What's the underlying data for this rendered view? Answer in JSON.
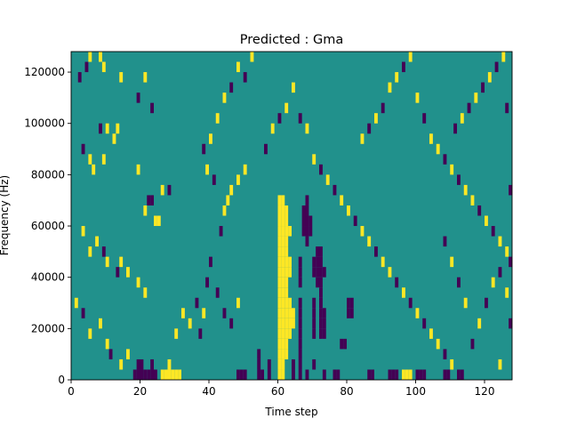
{
  "chart_data": {
    "type": "heatmap",
    "title": "Predicted : Gma",
    "xlabel": "Time step",
    "ylabel": "Frequency (Hz)",
    "xlim": [
      0,
      128
    ],
    "ylim": [
      0,
      128000
    ],
    "xticks": [
      {
        "value": 0,
        "label": "0"
      },
      {
        "value": 20,
        "label": "20"
      },
      {
        "value": 40,
        "label": "40"
      },
      {
        "value": 60,
        "label": "60"
      },
      {
        "value": 80,
        "label": "80"
      },
      {
        "value": 100,
        "label": "100"
      },
      {
        "value": 120,
        "label": "120"
      }
    ],
    "yticks": [
      {
        "value": 0,
        "label": "0"
      },
      {
        "value": 20000,
        "label": "20000"
      },
      {
        "value": 40000,
        "label": "40000"
      },
      {
        "value": 60000,
        "label": "60000"
      },
      {
        "value": 80000,
        "label": "80000"
      },
      {
        "value": 100000,
        "label": "100000"
      },
      {
        "value": 120000,
        "label": "120000"
      }
    ],
    "grid": false,
    "legend": "none",
    "colors": {
      "background": "#21918c",
      "low": "#440154",
      "high": "#fde725"
    },
    "levels": {
      "background": 0,
      "low": -1,
      "high": 1
    },
    "cell_height_hz": 4000,
    "cells": [
      [
        60,
        0,
        1
      ],
      [
        60,
        4000,
        1
      ],
      [
        60,
        8000,
        1
      ],
      [
        60,
        12000,
        1
      ],
      [
        60,
        16000,
        1
      ],
      [
        60,
        20000,
        1
      ],
      [
        60,
        24000,
        1
      ],
      [
        60,
        28000,
        1
      ],
      [
        60,
        32000,
        1
      ],
      [
        60,
        36000,
        1
      ],
      [
        60,
        40000,
        1
      ],
      [
        60,
        44000,
        1
      ],
      [
        60,
        48000,
        1
      ],
      [
        60,
        52000,
        1
      ],
      [
        60,
        56000,
        1
      ],
      [
        60,
        60000,
        1
      ],
      [
        60,
        64000,
        1
      ],
      [
        60,
        68000,
        1
      ],
      [
        61,
        0,
        1
      ],
      [
        61,
        4000,
        1
      ],
      [
        61,
        8000,
        1
      ],
      [
        61,
        12000,
        1
      ],
      [
        61,
        16000,
        1
      ],
      [
        61,
        20000,
        1
      ],
      [
        61,
        24000,
        1
      ],
      [
        61,
        28000,
        1
      ],
      [
        61,
        32000,
        1
      ],
      [
        61,
        36000,
        1
      ],
      [
        61,
        40000,
        1
      ],
      [
        61,
        44000,
        1
      ],
      [
        61,
        48000,
        1
      ],
      [
        61,
        52000,
        1
      ],
      [
        61,
        56000,
        1
      ],
      [
        61,
        60000,
        1
      ],
      [
        61,
        64000,
        1
      ],
      [
        61,
        68000,
        1
      ],
      [
        62,
        8000,
        1
      ],
      [
        62,
        12000,
        1
      ],
      [
        62,
        16000,
        1
      ],
      [
        62,
        20000,
        1
      ],
      [
        62,
        24000,
        1
      ],
      [
        62,
        28000,
        1
      ],
      [
        62,
        32000,
        1
      ],
      [
        62,
        36000,
        1
      ],
      [
        62,
        40000,
        1
      ],
      [
        62,
        44000,
        1
      ],
      [
        62,
        48000,
        1
      ],
      [
        62,
        52000,
        1
      ],
      [
        62,
        56000,
        1
      ],
      [
        62,
        60000,
        1
      ],
      [
        62,
        64000,
        1
      ],
      [
        63,
        16000,
        1
      ],
      [
        63,
        20000,
        1
      ],
      [
        63,
        24000,
        1
      ],
      [
        63,
        28000,
        1
      ],
      [
        63,
        40000,
        1
      ],
      [
        63,
        44000,
        1
      ],
      [
        63,
        56000,
        1
      ],
      [
        64,
        20000,
        1
      ],
      [
        64,
        24000,
        1
      ],
      [
        18,
        0,
        -1
      ],
      [
        19,
        0,
        -1
      ],
      [
        20,
        0,
        -1
      ],
      [
        21,
        0,
        -1
      ],
      [
        22,
        0,
        -1
      ],
      [
        23,
        0,
        -1
      ],
      [
        24,
        0,
        -1
      ],
      [
        20,
        4000,
        -1
      ],
      [
        23,
        4000,
        -1
      ],
      [
        26,
        0,
        1
      ],
      [
        27,
        0,
        1
      ],
      [
        28,
        0,
        1
      ],
      [
        29,
        0,
        1
      ],
      [
        30,
        0,
        1
      ],
      [
        31,
        0,
        1
      ],
      [
        28,
        4000,
        1
      ],
      [
        48,
        0,
        -1
      ],
      [
        49,
        0,
        -1
      ],
      [
        50,
        0,
        -1
      ],
      [
        54,
        0,
        -1
      ],
      [
        55,
        0,
        -1
      ],
      [
        54,
        4000,
        -1
      ],
      [
        54,
        8000,
        -1
      ],
      [
        57,
        0,
        -1
      ],
      [
        57,
        4000,
        -1
      ],
      [
        64,
        0,
        -1
      ],
      [
        64,
        4000,
        -1
      ],
      [
        66,
        0,
        -1
      ],
      [
        66,
        4000,
        -1
      ],
      [
        66,
        8000,
        -1
      ],
      [
        66,
        12000,
        -1
      ],
      [
        66,
        16000,
        -1
      ],
      [
        66,
        20000,
        -1
      ],
      [
        66,
        24000,
        -1
      ],
      [
        66,
        28000,
        -1
      ],
      [
        66,
        36000,
        -1
      ],
      [
        66,
        40000,
        -1
      ],
      [
        66,
        44000,
        -1
      ],
      [
        67,
        56000,
        -1
      ],
      [
        67,
        60000,
        -1
      ],
      [
        67,
        64000,
        -1
      ],
      [
        68,
        52000,
        -1
      ],
      [
        68,
        56000,
        -1
      ],
      [
        68,
        60000,
        -1
      ],
      [
        68,
        64000,
        -1
      ],
      [
        68,
        68000,
        -1
      ],
      [
        69,
        56000,
        -1
      ],
      [
        69,
        60000,
        -1
      ],
      [
        70,
        16000,
        -1
      ],
      [
        70,
        20000,
        -1
      ],
      [
        70,
        24000,
        -1
      ],
      [
        70,
        28000,
        -1
      ],
      [
        70,
        40000,
        -1
      ],
      [
        70,
        44000,
        -1
      ],
      [
        71,
        36000,
        -1
      ],
      [
        71,
        40000,
        -1
      ],
      [
        71,
        44000,
        -1
      ],
      [
        71,
        48000,
        -1
      ],
      [
        72,
        16000,
        -1
      ],
      [
        72,
        20000,
        -1
      ],
      [
        72,
        24000,
        -1
      ],
      [
        72,
        28000,
        -1
      ],
      [
        72,
        32000,
        -1
      ],
      [
        72,
        36000,
        -1
      ],
      [
        72,
        40000,
        -1
      ],
      [
        72,
        44000,
        -1
      ],
      [
        72,
        48000,
        -1
      ],
      [
        73,
        16000,
        -1
      ],
      [
        73,
        20000,
        -1
      ],
      [
        73,
        24000,
        -1
      ],
      [
        73,
        40000,
        -1
      ],
      [
        68,
        0,
        -1
      ],
      [
        70,
        4000,
        -1
      ],
      [
        73,
        0,
        -1
      ],
      [
        76,
        0,
        -1
      ],
      [
        77,
        0,
        -1
      ],
      [
        80,
        24000,
        -1
      ],
      [
        80,
        28000,
        -1
      ],
      [
        81,
        24000,
        -1
      ],
      [
        81,
        28000,
        -1
      ],
      [
        78,
        12000,
        -1
      ],
      [
        79,
        12000,
        -1
      ],
      [
        86,
        0,
        -1
      ],
      [
        87,
        0,
        -1
      ],
      [
        92,
        0,
        -1
      ],
      [
        93,
        0,
        -1
      ],
      [
        94,
        0,
        -1
      ],
      [
        96,
        0,
        1
      ],
      [
        97,
        0,
        1
      ],
      [
        98,
        0,
        1
      ],
      [
        100,
        0,
        -1
      ],
      [
        101,
        0,
        -1
      ],
      [
        102,
        0,
        -1
      ],
      [
        108,
        0,
        -1
      ],
      [
        109,
        0,
        -1
      ],
      [
        112,
        0,
        -1
      ],
      [
        113,
        0,
        -1
      ],
      [
        124,
        4000,
        1
      ],
      [
        127,
        20000,
        -1
      ],
      [
        5,
        124000,
        1
      ],
      [
        4,
        120000,
        -1
      ],
      [
        2,
        116000,
        -1
      ],
      [
        8,
        124000,
        1
      ],
      [
        9,
        120000,
        1
      ],
      [
        14,
        116000,
        1
      ],
      [
        21,
        116000,
        1
      ],
      [
        23,
        104000,
        -1
      ],
      [
        19,
        108000,
        -1
      ],
      [
        8,
        96000,
        -1
      ],
      [
        10,
        96000,
        1
      ],
      [
        12,
        92000,
        1
      ],
      [
        13,
        96000,
        1
      ],
      [
        3,
        88000,
        -1
      ],
      [
        5,
        84000,
        1
      ],
      [
        6,
        80000,
        1
      ],
      [
        9,
        84000,
        1
      ],
      [
        22,
        68000,
        -1
      ],
      [
        23,
        68000,
        -1
      ],
      [
        26,
        72000,
        1
      ],
      [
        28,
        72000,
        -1
      ],
      [
        19,
        80000,
        1
      ],
      [
        21,
        64000,
        1
      ],
      [
        24,
        60000,
        1
      ],
      [
        25,
        60000,
        1
      ],
      [
        3,
        56000,
        1
      ],
      [
        5,
        48000,
        1
      ],
      [
        7,
        52000,
        1
      ],
      [
        9,
        48000,
        -1
      ],
      [
        10,
        44000,
        1
      ],
      [
        13,
        40000,
        -1
      ],
      [
        14,
        44000,
        1
      ],
      [
        16,
        40000,
        1
      ],
      [
        19,
        36000,
        1
      ],
      [
        21,
        32000,
        1
      ],
      [
        1,
        28000,
        1
      ],
      [
        3,
        24000,
        -1
      ],
      [
        5,
        16000,
        1
      ],
      [
        8,
        20000,
        1
      ],
      [
        10,
        12000,
        1
      ],
      [
        11,
        8000,
        -1
      ],
      [
        14,
        4000,
        1
      ],
      [
        16,
        8000,
        1
      ],
      [
        19,
        4000,
        -1
      ],
      [
        30,
        16000,
        1
      ],
      [
        32,
        24000,
        1
      ],
      [
        34,
        20000,
        1
      ],
      [
        36,
        28000,
        -1
      ],
      [
        37,
        16000,
        -1
      ],
      [
        38,
        24000,
        1
      ],
      [
        39,
        36000,
        -1
      ],
      [
        40,
        44000,
        -1
      ],
      [
        42,
        32000,
        -1
      ],
      [
        44,
        24000,
        -1
      ],
      [
        46,
        20000,
        -1
      ],
      [
        48,
        28000,
        1
      ],
      [
        43,
        56000,
        -1
      ],
      [
        44,
        64000,
        1
      ],
      [
        45,
        68000,
        1
      ],
      [
        46,
        72000,
        1
      ],
      [
        48,
        76000,
        1
      ],
      [
        50,
        80000,
        1
      ],
      [
        41,
        76000,
        -1
      ],
      [
        39,
        80000,
        1
      ],
      [
        38,
        88000,
        -1
      ],
      [
        40,
        92000,
        1
      ],
      [
        42,
        100000,
        1
      ],
      [
        44,
        108000,
        1
      ],
      [
        46,
        112000,
        -1
      ],
      [
        48,
        120000,
        1
      ],
      [
        50,
        116000,
        -1
      ],
      [
        52,
        124000,
        1
      ],
      [
        56,
        88000,
        -1
      ],
      [
        58,
        96000,
        1
      ],
      [
        60,
        100000,
        -1
      ],
      [
        62,
        104000,
        1
      ],
      [
        64,
        112000,
        1
      ],
      [
        66,
        100000,
        -1
      ],
      [
        68,
        96000,
        1
      ],
      [
        70,
        84000,
        1
      ],
      [
        72,
        80000,
        -1
      ],
      [
        74,
        76000,
        1
      ],
      [
        76,
        72000,
        -1
      ],
      [
        78,
        68000,
        1
      ],
      [
        80,
        64000,
        1
      ],
      [
        82,
        60000,
        -1
      ],
      [
        84,
        56000,
        1
      ],
      [
        86,
        52000,
        1
      ],
      [
        88,
        48000,
        -1
      ],
      [
        90,
        44000,
        1
      ],
      [
        92,
        40000,
        1
      ],
      [
        94,
        36000,
        -1
      ],
      [
        96,
        32000,
        1
      ],
      [
        98,
        28000,
        -1
      ],
      [
        100,
        24000,
        1
      ],
      [
        102,
        20000,
        -1
      ],
      [
        104,
        16000,
        1
      ],
      [
        106,
        12000,
        1
      ],
      [
        108,
        8000,
        -1
      ],
      [
        110,
        4000,
        1
      ],
      [
        84,
        92000,
        1
      ],
      [
        86,
        96000,
        -1
      ],
      [
        88,
        100000,
        1
      ],
      [
        90,
        104000,
        -1
      ],
      [
        92,
        112000,
        1
      ],
      [
        94,
        116000,
        1
      ],
      [
        96,
        120000,
        -1
      ],
      [
        98,
        124000,
        1
      ],
      [
        100,
        108000,
        1
      ],
      [
        102,
        100000,
        -1
      ],
      [
        104,
        92000,
        1
      ],
      [
        106,
        88000,
        1
      ],
      [
        108,
        84000,
        -1
      ],
      [
        110,
        80000,
        1
      ],
      [
        112,
        76000,
        -1
      ],
      [
        114,
        72000,
        1
      ],
      [
        116,
        68000,
        1
      ],
      [
        118,
        64000,
        -1
      ],
      [
        120,
        60000,
        1
      ],
      [
        122,
        56000,
        -1
      ],
      [
        124,
        52000,
        1
      ],
      [
        126,
        48000,
        1
      ],
      [
        127,
        44000,
        -1
      ],
      [
        111,
        96000,
        -1
      ],
      [
        113,
        100000,
        1
      ],
      [
        115,
        104000,
        -1
      ],
      [
        117,
        108000,
        1
      ],
      [
        119,
        112000,
        -1
      ],
      [
        121,
        116000,
        1
      ],
      [
        123,
        120000,
        -1
      ],
      [
        125,
        124000,
        1
      ],
      [
        126,
        104000,
        -1
      ],
      [
        127,
        72000,
        -1
      ],
      [
        116,
        12000,
        -1
      ],
      [
        118,
        20000,
        1
      ],
      [
        120,
        28000,
        -1
      ],
      [
        122,
        36000,
        1
      ],
      [
        124,
        40000,
        -1
      ],
      [
        126,
        32000,
        1
      ],
      [
        114,
        28000,
        1
      ],
      [
        112,
        36000,
        -1
      ],
      [
        110,
        44000,
        1
      ],
      [
        108,
        52000,
        -1
      ]
    ]
  }
}
